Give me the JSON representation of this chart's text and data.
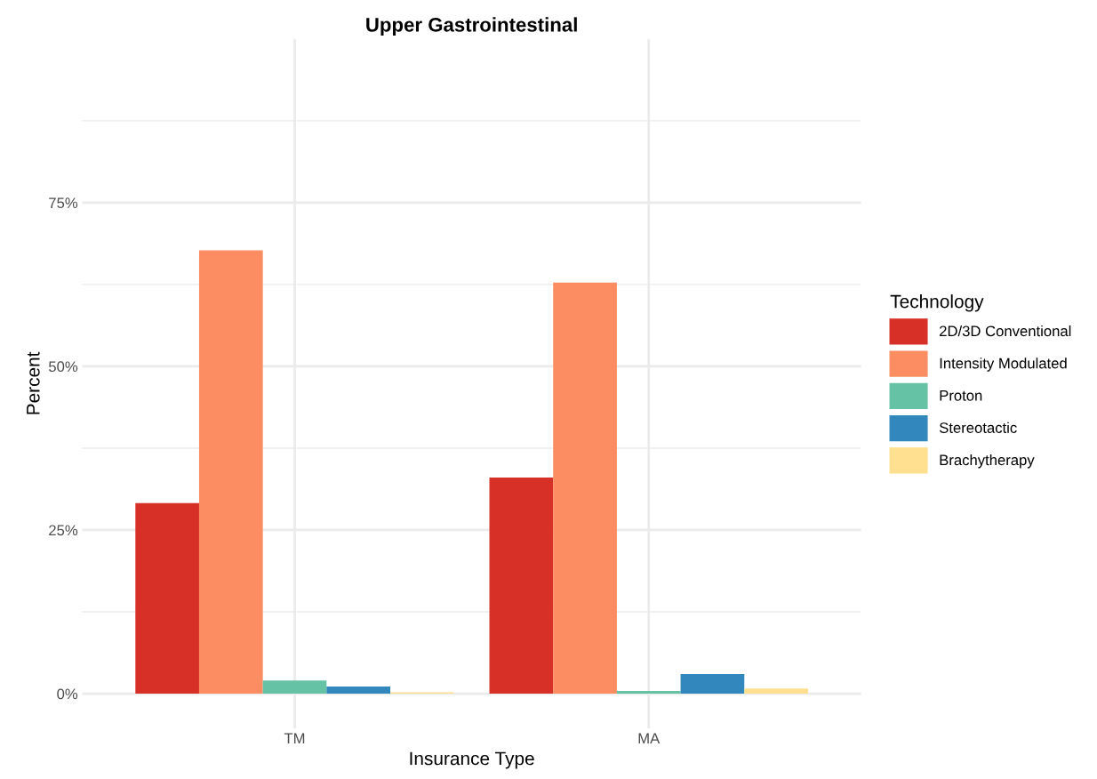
{
  "chart_data": {
    "type": "bar",
    "title": "Upper Gastrointestinal",
    "xlabel": "Insurance Type",
    "ylabel": "Percent",
    "legend_title": "Technology",
    "categories": [
      "TM",
      "MA"
    ],
    "series": [
      {
        "name": "2D/3D Conventional",
        "color": "#d73027",
        "values": [
          29.1,
          33.0
        ]
      },
      {
        "name": "Intensity Modulated",
        "color": "#fc8d62",
        "values": [
          67.7,
          62.8
        ]
      },
      {
        "name": "Proton",
        "color": "#66c2a5",
        "values": [
          2.0,
          0.4
        ]
      },
      {
        "name": "Stereotactic",
        "color": "#3288bd",
        "values": [
          1.1,
          3.0
        ]
      },
      {
        "name": "Brachytherapy",
        "color": "#fee090",
        "values": [
          0.2,
          0.8
        ]
      }
    ],
    "ylim": [
      -5.3,
      100
    ],
    "yticks": [
      {
        "value": 0,
        "label": "0%"
      },
      {
        "value": 12.5,
        "label": null
      },
      {
        "value": 25,
        "label": "25%"
      },
      {
        "value": 37.5,
        "label": null
      },
      {
        "value": 50,
        "label": "50%"
      },
      {
        "value": 62.5,
        "label": null
      },
      {
        "value": 75,
        "label": "75%"
      },
      {
        "value": 87.5,
        "label": null
      }
    ],
    "grid": true,
    "legend": "right"
  }
}
